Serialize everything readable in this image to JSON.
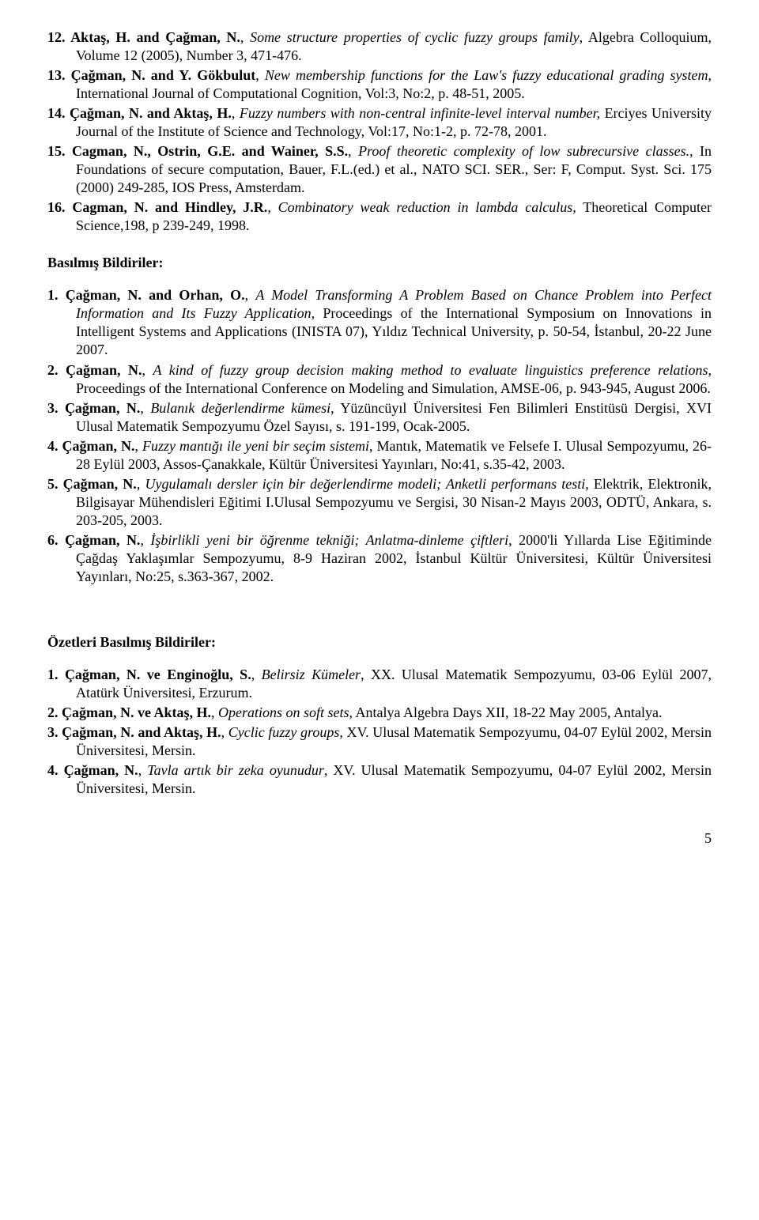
{
  "section1_items": [
    {
      "num": "12.",
      "authors": "Aktaş, H. and Çağman, N.",
      "title": "Some structure properties of cyclic fuzzy groups family",
      "rest": ", Algebra Colloquium, Volume 12 (2005), Number 3, 471-476."
    },
    {
      "num": "13.",
      "authors": "Çağman, N. and Y. Gökbulut",
      "title": "New membership functions for the Law's fuzzy educational grading system",
      "rest": ", International Journal of Computational Cognition, Vol:3, No:2, p. 48-51, 2005."
    },
    {
      "num": "14.",
      "authors": "Çağman, N. and Aktaş, H.",
      "title": "Fuzzy numbers with non-central infinite-level interval number,",
      "rest": " Erciyes University Journal of the Institute of Science and Technology, Vol:17, No:1-2, p. 72-78, 2001."
    },
    {
      "num": "15.",
      "authors": "Cagman, N., Ostrin, G.E. and Wainer, S.S.",
      "title": "Proof theoretic complexity of low subrecursive classes.",
      "rest": ", In Foundations of secure computation, Bauer, F.L.(ed.) et al., NATO SCI. SER., Ser: F, Comput. Syst. Sci. 175 (2000) 249-285, IOS Press, Amsterdam."
    },
    {
      "num": "16.",
      "authors": "Cagman, N. and Hindley, J.R.",
      "title": "Combinatory weak reduction in lambda calculus,",
      "rest": " Theoretical Computer Science,198, p 239-249, 1998."
    }
  ],
  "heading2": "Basılmış Bildiriler:",
  "section2_items": [
    {
      "num": "1.",
      "authors": "Çağman, N. and Orhan, O.",
      "title": "A Model Transforming A Problem Based on Chance Problem into Perfect Information and Its Fuzzy Application",
      "rest": ", Proceedings of the International Symposium on Innovations in Intelligent Systems and Applications (INISTA 07), Yıldız Technical University, p. 50-54, İstanbul, 20-22 June 2007."
    },
    {
      "num": "2.",
      "authors": "Çağman, N.",
      "title": "A kind of fuzzy group decision making method to evaluate linguistics preference relations",
      "rest": ", Proceedings of the International Conference on Modeling and Simulation, AMSE-06, p. 943-945, August 2006."
    },
    {
      "num": "3.",
      "authors": "Çağman, N.",
      "title": "Bulanık değerlendirme kümesi",
      "rest": ", Yüzüncüyıl Üniversitesi Fen Bilimleri Enstitüsü Dergisi, XVI Ulusal Matematik Sempozyumu Özel Sayısı, s. 191-199, Ocak-2005."
    },
    {
      "num": "4.",
      "authors": "Çağman, N.",
      "title": "Fuzzy mantığı ile yeni bir seçim sistemi",
      "rest": ", Mantık, Matematik ve Felsefe I. Ulusal Sempozyumu, 26-28 Eylül 2003, Assos-Çanakkale, Kültür Üniversitesi Yayınları, No:41, s.35-42, 2003."
    },
    {
      "num": "5.",
      "authors": "Çağman, N.",
      "title": "Uygulamalı dersler için bir değerlendirme modeli; Anketli performans testi",
      "rest": ", Elektrik, Elektronik, Bilgisayar Mühendisleri Eğitimi I.Ulusal Sempozyumu ve Sergisi, 30 Nisan-2 Mayıs 2003, ODTÜ, Ankara, s. 203-205, 2003."
    },
    {
      "num": "6.",
      "authors": "Çağman, N.",
      "title": "İşbirlikli yeni bir öğrenme tekniği; Anlatma-dinleme çiftleri",
      "rest": ", 2000'li Yıllarda Lise Eğitiminde Çağdaş Yaklaşımlar Sempozyumu, 8-9 Haziran 2002, İstanbul Kültür Üniversitesi, Kültür Üniversitesi Yayınları, No:25, s.363-367, 2002."
    }
  ],
  "heading3": "Özetleri Basılmış Bildiriler:",
  "section3_items": [
    {
      "num": "1.",
      "authors": "Çağman, N. ve Enginoğlu, S.",
      "title": "Belirsiz Kümeler",
      "rest": ", XX. Ulusal Matematik Sempozyumu, 03-06 Eylül 2007, Atatürk Üniversitesi, Erzurum."
    },
    {
      "num": "2.",
      "authors": "Çağman, N. ve Aktaş, H.",
      "title": "Operations on soft sets",
      "rest": ", Antalya Algebra Days XII, 18-22 May 2005, Antalya."
    },
    {
      "num": "3.",
      "authors": "Çağman, N. and Aktaş, H.",
      "title": "Cyclic fuzzy groups",
      "rest": ", XV. Ulusal Matematik Sempozyumu, 04-07 Eylül 2002, Mersin Üniversitesi, Mersin."
    },
    {
      "num": "4.",
      "authors": "Çağman, N.",
      "title": "Tavla artık bir zeka oyunudur",
      "rest": ", XV. Ulusal Matematik Sempozyumu, 04-07 Eylül 2002, Mersin Üniversitesi, Mersin."
    }
  ],
  "page_number": "5"
}
